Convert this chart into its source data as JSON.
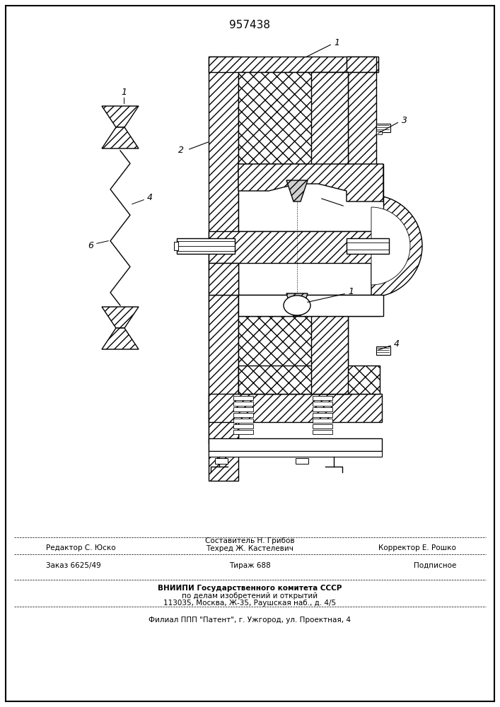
{
  "patent_number": "957438",
  "bg_color": "#ffffff",
  "border_color": "#000000",
  "footer": {
    "editor": "Редактор С. Юско",
    "composer_label": "Составитель Н. Грибов",
    "techred_label": "Техред Ж. Кастелевич",
    "corrector": "Корректор Е. Рошко",
    "order": "Заказ 6625/49",
    "tirazh": "Тираж 688",
    "podpisnoe": "Подписное",
    "vnipi_line1": "ВНИИПИ Государственного комитета СССР",
    "vnipi_line2": "по делам изобретений и открытий",
    "vnipi_line3": "113035, Москва, Ж-35, Раушская наб., д. 4/5",
    "filial": "Филиал ППП \"Патент\", г. Ужгород, ул. Проектная, 4"
  }
}
